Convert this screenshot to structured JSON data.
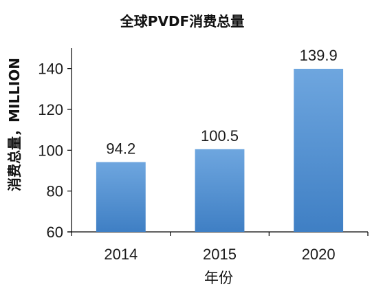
{
  "chart_data": {
    "type": "bar",
    "title": "全球PVDF消费总量",
    "xlabel": "年份",
    "ylabel": "消费总量，MILLION",
    "categories": [
      "2014",
      "2015",
      "2020"
    ],
    "values": [
      94.2,
      100.5,
      139.9
    ],
    "data_labels": [
      "94.2",
      "100.5",
      "139.9"
    ],
    "ylim": [
      60,
      150
    ],
    "yticks": [
      60,
      80,
      100,
      120,
      140
    ],
    "ytick_labels": [
      "60",
      "80",
      "100",
      "120",
      "140"
    ],
    "grid": false,
    "legend": "none",
    "bar_color_top": "#6ea6df",
    "bar_color_bottom": "#3f7fc4",
    "axis_color": "#000000"
  }
}
